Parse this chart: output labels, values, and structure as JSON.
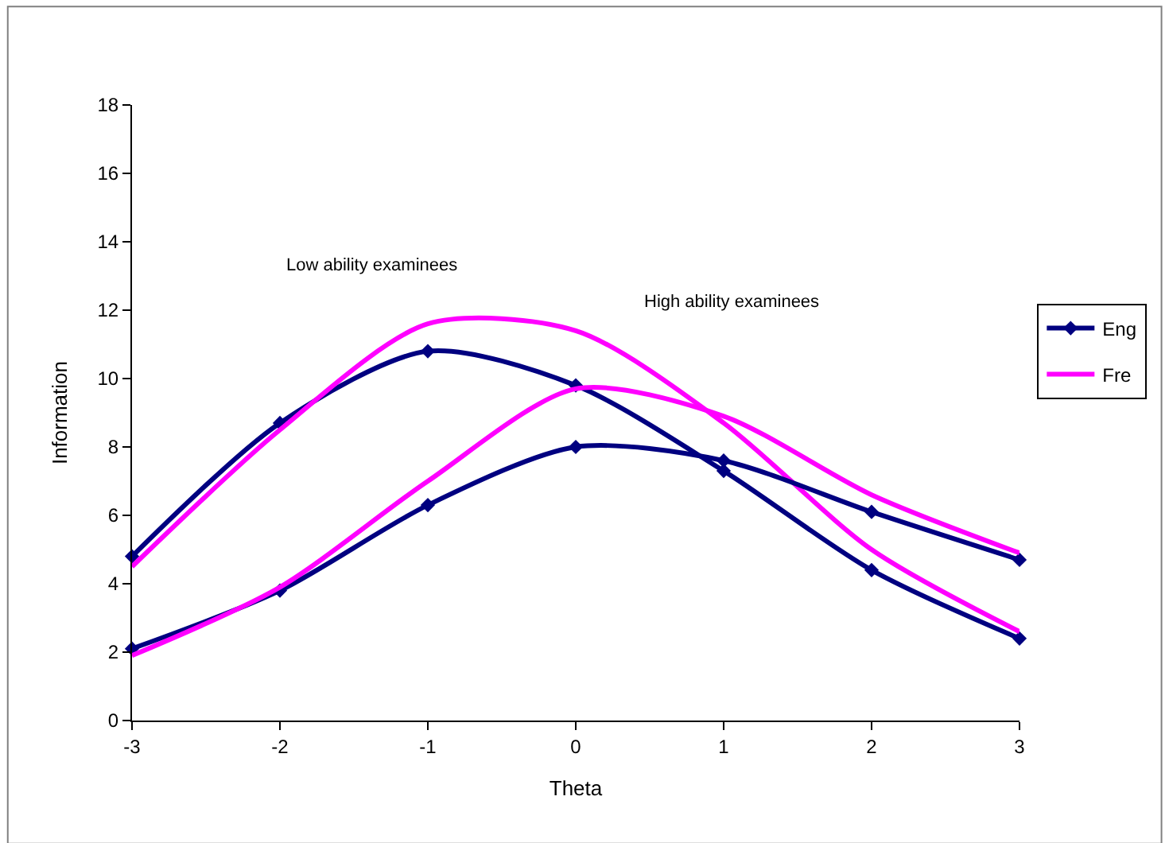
{
  "chart_data": {
    "type": "line",
    "xlabel": "Theta",
    "ylabel": "Information",
    "x": [
      -3,
      -2,
      -1,
      0,
      1,
      2,
      3
    ],
    "xlim": [
      -3,
      3
    ],
    "xticks": [
      -3,
      -2,
      -1,
      0,
      1,
      2,
      3
    ],
    "ylim": [
      0,
      18
    ],
    "yticks": [
      0,
      2,
      4,
      6,
      8,
      10,
      12,
      14,
      16,
      18
    ],
    "legend": "right",
    "line_style": "solid",
    "series": [
      {
        "name": "Eng",
        "color": "#000080",
        "marker": "diamond",
        "values": [
          4.8,
          8.7,
          10.8,
          9.8,
          7.3,
          4.4,
          2.4
        ]
      },
      {
        "name": "Fre",
        "color": "#ff00ff",
        "marker": "none",
        "values": [
          4.5,
          8.5,
          11.6,
          11.4,
          8.7,
          5.0,
          2.6
        ]
      },
      {
        "color": "#000080",
        "marker": "diamond",
        "values": [
          2.1,
          3.8,
          6.3,
          8.0,
          7.6,
          6.1,
          4.7
        ]
      },
      {
        "color": "#ff00ff",
        "marker": "none",
        "values": [
          1.9,
          3.9,
          7.0,
          9.7,
          8.9,
          6.6,
          4.9
        ]
      }
    ],
    "annotations": [
      "Low ability examinees",
      "High ability examinees"
    ]
  }
}
